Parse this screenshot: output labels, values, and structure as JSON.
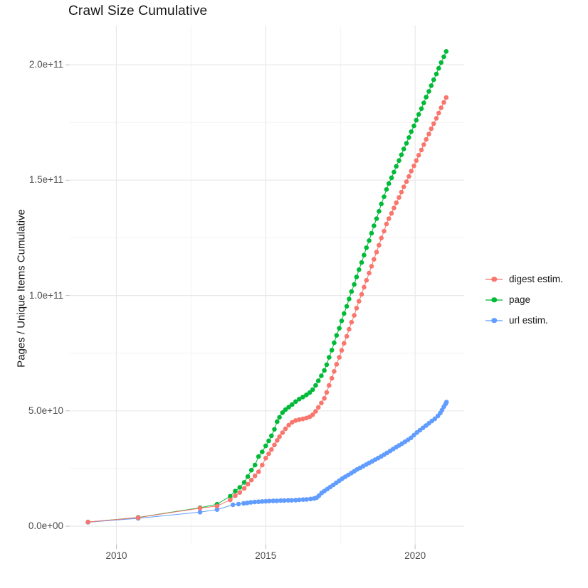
{
  "page": {
    "background": "#ffffff"
  },
  "chart_data": {
    "type": "line",
    "title": "Crawl Size Cumulative",
    "ylabel": "Pages / Unique Items Cumulative",
    "xlabel": "",
    "value_unit": "1e9 (values stored in billions)",
    "grid": true,
    "legend_position": "right",
    "xlim": [
      2008.44,
      2021.64
    ],
    "ylim_billions": [
      -8,
      217
    ],
    "x_ticks": [
      {
        "value": 2010,
        "label": "2010"
      },
      {
        "value": 2015,
        "label": "2015"
      },
      {
        "value": 2020,
        "label": "2020"
      }
    ],
    "x_minor_ticks": [
      2012.5,
      2017.5
    ],
    "y_ticks": [
      {
        "value": 0,
        "label": "0.0e+00"
      },
      {
        "value": 50,
        "label": "5.0e+10"
      },
      {
        "value": 100,
        "label": "1.0e+11"
      },
      {
        "value": 150,
        "label": "1.5e+11"
      },
      {
        "value": 200,
        "label": "2.0e+11"
      }
    ],
    "y_minor_ticks": [
      25,
      75,
      125,
      175
    ],
    "colors": {
      "digest": "#F8766D",
      "page": "#00BA38",
      "url": "#619CFF",
      "grid_major": "#E8E8E8",
      "grid_minor": "#F3F3F3",
      "tick_mark": "#BDBDBD"
    },
    "z_order": [
      1,
      2,
      0
    ],
    "series": [
      {
        "name": "digest estim.",
        "color": "#F8766D",
        "points": [
          [
            2009.05,
            1.8
          ],
          [
            2010.73,
            3.7
          ],
          [
            2012.8,
            7.8
          ],
          [
            2013.37,
            8.7
          ],
          [
            2013.81,
            11.4
          ],
          [
            2013.98,
            13.2
          ],
          [
            2014.13,
            14.6
          ],
          [
            2014.28,
            16.4
          ],
          [
            2014.4,
            18.2
          ],
          [
            2014.52,
            20.0
          ],
          [
            2014.64,
            21.8
          ],
          [
            2014.76,
            23.6
          ],
          [
            2014.88,
            26.5
          ],
          [
            2015.0,
            29.5
          ],
          [
            2015.1,
            31.4
          ],
          [
            2015.19,
            33.2
          ],
          [
            2015.29,
            35.2
          ],
          [
            2015.38,
            37.2
          ],
          [
            2015.46,
            38.8
          ],
          [
            2015.56,
            40.5
          ],
          [
            2015.66,
            42.2
          ],
          [
            2015.77,
            43.8
          ],
          [
            2015.88,
            45.0
          ],
          [
            2016.0,
            45.8
          ],
          [
            2016.12,
            46.2
          ],
          [
            2016.24,
            46.5
          ],
          [
            2016.36,
            46.9
          ],
          [
            2016.47,
            47.4
          ],
          [
            2016.57,
            48.3
          ],
          [
            2016.67,
            49.8
          ],
          [
            2016.76,
            51.5
          ],
          [
            2016.86,
            53.4
          ],
          [
            2016.96,
            55.4
          ],
          [
            2017.04,
            58.0
          ],
          [
            2017.12,
            61.0
          ],
          [
            2017.21,
            64.1
          ],
          [
            2017.29,
            67.1
          ],
          [
            2017.37,
            70.2
          ],
          [
            2017.46,
            73.2
          ],
          [
            2017.54,
            76.2
          ],
          [
            2017.62,
            79.3
          ],
          [
            2017.71,
            82.3
          ],
          [
            2017.79,
            85.4
          ],
          [
            2017.87,
            88.4
          ],
          [
            2017.96,
            91.4
          ],
          [
            2018.04,
            94.5
          ],
          [
            2018.12,
            97.5
          ],
          [
            2018.21,
            100.5
          ],
          [
            2018.29,
            103.6
          ],
          [
            2018.37,
            106.6
          ],
          [
            2018.46,
            109.7
          ],
          [
            2018.54,
            112.7
          ],
          [
            2018.62,
            115.7
          ],
          [
            2018.71,
            118.8
          ],
          [
            2018.79,
            121.8
          ],
          [
            2018.87,
            124.9
          ],
          [
            2018.96,
            127.9
          ],
          [
            2019.04,
            131.0
          ],
          [
            2019.12,
            133.3
          ],
          [
            2019.21,
            135.6
          ],
          [
            2019.29,
            137.9
          ],
          [
            2019.37,
            140.2
          ],
          [
            2019.46,
            142.5
          ],
          [
            2019.54,
            144.8
          ],
          [
            2019.62,
            147.1
          ],
          [
            2019.71,
            149.3
          ],
          [
            2019.79,
            151.6
          ],
          [
            2019.87,
            153.9
          ],
          [
            2019.96,
            156.2
          ],
          [
            2020.04,
            158.5
          ],
          [
            2020.12,
            160.8
          ],
          [
            2020.21,
            163.1
          ],
          [
            2020.29,
            165.4
          ],
          [
            2020.37,
            167.7
          ],
          [
            2020.46,
            170.0
          ],
          [
            2020.54,
            172.3
          ],
          [
            2020.62,
            174.5
          ],
          [
            2020.71,
            176.8
          ],
          [
            2020.79,
            179.1
          ],
          [
            2020.87,
            181.4
          ],
          [
            2020.96,
            183.7
          ],
          [
            2021.04,
            185.8
          ]
        ]
      },
      {
        "name": "page",
        "color": "#00BA38",
        "points": [
          [
            2009.05,
            1.8
          ],
          [
            2010.73,
            3.8
          ],
          [
            2012.8,
            8.0
          ],
          [
            2013.37,
            9.5
          ],
          [
            2013.81,
            13.0
          ],
          [
            2013.98,
            15.2
          ],
          [
            2014.13,
            16.8
          ],
          [
            2014.28,
            19.0
          ],
          [
            2014.4,
            21.5
          ],
          [
            2014.52,
            24.3
          ],
          [
            2014.64,
            26.5
          ],
          [
            2014.76,
            30.2
          ],
          [
            2014.88,
            32.2
          ],
          [
            2015.0,
            34.8
          ],
          [
            2015.1,
            37.0
          ],
          [
            2015.19,
            39.2
          ],
          [
            2015.29,
            42.0
          ],
          [
            2015.38,
            45.3
          ],
          [
            2015.46,
            47.2
          ],
          [
            2015.56,
            49.2
          ],
          [
            2015.66,
            50.5
          ],
          [
            2015.77,
            51.6
          ],
          [
            2015.88,
            52.7
          ],
          [
            2016.0,
            54.0
          ],
          [
            2016.12,
            55.1
          ],
          [
            2016.24,
            56.0
          ],
          [
            2016.36,
            56.9
          ],
          [
            2016.47,
            57.9
          ],
          [
            2016.57,
            59.2
          ],
          [
            2016.67,
            61.0
          ],
          [
            2016.76,
            63.0
          ],
          [
            2016.86,
            65.2
          ],
          [
            2016.96,
            67.5
          ],
          [
            2017.04,
            70.0
          ],
          [
            2017.12,
            73.2
          ],
          [
            2017.21,
            76.3
          ],
          [
            2017.29,
            79.5
          ],
          [
            2017.37,
            82.7
          ],
          [
            2017.46,
            85.8
          ],
          [
            2017.54,
            89.0
          ],
          [
            2017.62,
            92.2
          ],
          [
            2017.71,
            95.3
          ],
          [
            2017.79,
            98.5
          ],
          [
            2017.87,
            101.7
          ],
          [
            2017.96,
            104.8
          ],
          [
            2018.04,
            108.0
          ],
          [
            2018.12,
            111.2
          ],
          [
            2018.21,
            114.3
          ],
          [
            2018.29,
            117.5
          ],
          [
            2018.37,
            120.7
          ],
          [
            2018.46,
            123.8
          ],
          [
            2018.54,
            127.0
          ],
          [
            2018.62,
            130.2
          ],
          [
            2018.71,
            133.3
          ],
          [
            2018.79,
            136.5
          ],
          [
            2018.87,
            139.7
          ],
          [
            2018.96,
            142.8
          ],
          [
            2019.04,
            146.0
          ],
          [
            2019.12,
            148.5
          ],
          [
            2019.21,
            151.0
          ],
          [
            2019.29,
            153.5
          ],
          [
            2019.37,
            156.0
          ],
          [
            2019.46,
            158.5
          ],
          [
            2019.54,
            161.0
          ],
          [
            2019.62,
            163.5
          ],
          [
            2019.71,
            166.0
          ],
          [
            2019.79,
            168.5
          ],
          [
            2019.87,
            171.0
          ],
          [
            2019.96,
            173.5
          ],
          [
            2020.04,
            176.0
          ],
          [
            2020.12,
            178.5
          ],
          [
            2020.21,
            181.0
          ],
          [
            2020.29,
            183.5
          ],
          [
            2020.37,
            186.0
          ],
          [
            2020.46,
            188.5
          ],
          [
            2020.54,
            191.0
          ],
          [
            2020.62,
            193.5
          ],
          [
            2020.71,
            196.0
          ],
          [
            2020.79,
            198.5
          ],
          [
            2020.87,
            201.0
          ],
          [
            2020.96,
            203.5
          ],
          [
            2021.04,
            205.8
          ]
        ]
      },
      {
        "name": "url estim.",
        "color": "#619CFF",
        "points": [
          [
            2009.05,
            1.7
          ],
          [
            2010.73,
            3.4
          ],
          [
            2012.8,
            6.1
          ],
          [
            2013.37,
            7.2
          ],
          [
            2013.9,
            9.3
          ],
          [
            2014.09,
            9.6
          ],
          [
            2014.26,
            9.9
          ],
          [
            2014.38,
            10.1
          ],
          [
            2014.5,
            10.3
          ],
          [
            2014.63,
            10.5
          ],
          [
            2014.76,
            10.6
          ],
          [
            2014.88,
            10.7
          ],
          [
            2015.0,
            10.8
          ],
          [
            2015.12,
            10.9
          ],
          [
            2015.25,
            11.0
          ],
          [
            2015.37,
            11.0
          ],
          [
            2015.5,
            11.1
          ],
          [
            2015.62,
            11.1
          ],
          [
            2015.75,
            11.2
          ],
          [
            2015.87,
            11.2
          ],
          [
            2016.0,
            11.3
          ],
          [
            2016.12,
            11.4
          ],
          [
            2016.25,
            11.5
          ],
          [
            2016.37,
            11.6
          ],
          [
            2016.5,
            11.8
          ],
          [
            2016.62,
            12.0
          ],
          [
            2016.7,
            12.3
          ],
          [
            2016.78,
            13.2
          ],
          [
            2016.87,
            14.4
          ],
          [
            2016.96,
            15.2
          ],
          [
            2017.06,
            16.1
          ],
          [
            2017.16,
            17.0
          ],
          [
            2017.26,
            17.9
          ],
          [
            2017.36,
            18.8
          ],
          [
            2017.46,
            19.7
          ],
          [
            2017.56,
            20.6
          ],
          [
            2017.66,
            21.4
          ],
          [
            2017.76,
            22.2
          ],
          [
            2017.86,
            23.0
          ],
          [
            2017.96,
            23.8
          ],
          [
            2018.06,
            24.6
          ],
          [
            2018.16,
            25.3
          ],
          [
            2018.26,
            26.0
          ],
          [
            2018.36,
            26.7
          ],
          [
            2018.46,
            27.4
          ],
          [
            2018.56,
            28.1
          ],
          [
            2018.66,
            28.8
          ],
          [
            2018.76,
            29.5
          ],
          [
            2018.86,
            30.2
          ],
          [
            2018.96,
            31.0
          ],
          [
            2019.06,
            31.8
          ],
          [
            2019.16,
            32.6
          ],
          [
            2019.26,
            33.4
          ],
          [
            2019.36,
            34.2
          ],
          [
            2019.46,
            35.0
          ],
          [
            2019.56,
            35.8
          ],
          [
            2019.66,
            36.6
          ],
          [
            2019.76,
            37.4
          ],
          [
            2019.86,
            38.3
          ],
          [
            2019.96,
            39.5
          ],
          [
            2020.06,
            40.6
          ],
          [
            2020.16,
            41.6
          ],
          [
            2020.26,
            42.6
          ],
          [
            2020.36,
            43.6
          ],
          [
            2020.46,
            44.6
          ],
          [
            2020.56,
            45.6
          ],
          [
            2020.66,
            46.6
          ],
          [
            2020.76,
            47.8
          ],
          [
            2020.84,
            49.0
          ],
          [
            2020.9,
            50.3
          ],
          [
            2020.96,
            51.8
          ],
          [
            2021.02,
            53.0
          ],
          [
            2021.05,
            53.8
          ]
        ]
      }
    ]
  }
}
